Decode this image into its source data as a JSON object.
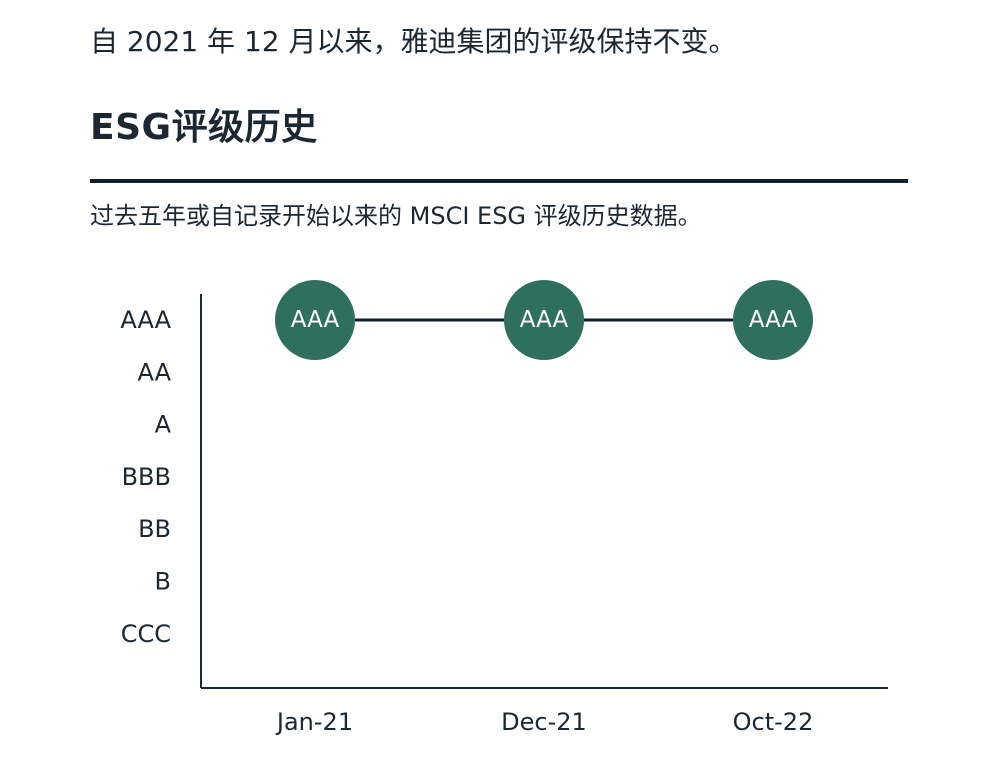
{
  "page": {
    "intro": "自 2021 年 12 月以来，雅迪集团的评级保持不变。",
    "section_title": "ESG评级历史",
    "subtitle": "过去五年或自记录开始以来的 MSCI ESG 评级历史数据。"
  },
  "colors": {
    "point_fill": "#2f6f5e",
    "line": "#0f1f2c",
    "axis": "#1b2733",
    "text": "#1b2733"
  },
  "chart_data": {
    "type": "line",
    "title": "",
    "xlabel": "",
    "ylabel": "",
    "y_categories": [
      "AAA",
      "AA",
      "A",
      "BBB",
      "BB",
      "B",
      "CCC"
    ],
    "categories": [
      "Jan-21",
      "Dec-21",
      "Oct-22"
    ],
    "series": [
      {
        "values": [
          "AAA",
          "AAA",
          "AAA"
        ]
      }
    ],
    "data_labels": [
      "AAA",
      "AAA",
      "AAA"
    ],
    "grid": false,
    "legend": "none"
  }
}
